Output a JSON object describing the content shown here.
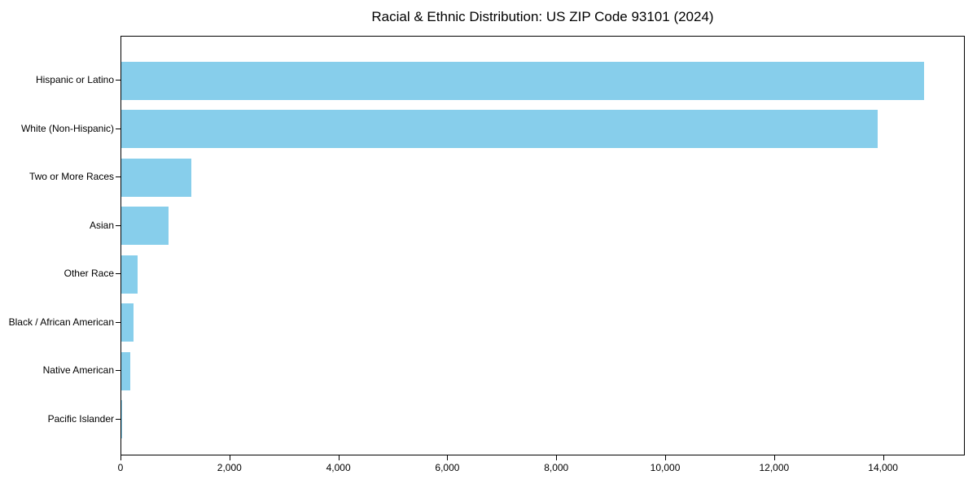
{
  "title": "Racial & Ethnic Distribution: US ZIP Code 93101 (2024)",
  "colors": {
    "bar": "#87CEEB",
    "axis": "#000000",
    "text": "#000000",
    "background": "#FFFFFF"
  },
  "chart_data": {
    "type": "bar",
    "orientation": "horizontal",
    "title": "Racial & Ethnic Distribution: US ZIP Code 93101 (2024)",
    "categories": [
      "Hispanic or Latino",
      "White (Non-Hispanic)",
      "Two or More Races",
      "Asian",
      "Other Race",
      "Black / African American",
      "Native American",
      "Pacific Islander"
    ],
    "values": [
      14760,
      13910,
      1290,
      865,
      305,
      230,
      160,
      10
    ],
    "xlabel": "",
    "ylabel": "",
    "xlim": [
      0,
      15500
    ],
    "xticks": [
      0,
      2000,
      4000,
      6000,
      8000,
      10000,
      12000,
      14000
    ],
    "xtick_labels": [
      "0",
      "2,000",
      "4,000",
      "6,000",
      "8,000",
      "10,000",
      "12,000",
      "14,000"
    ],
    "bar_color": "#87CEEB",
    "grid": false,
    "legend": false
  }
}
